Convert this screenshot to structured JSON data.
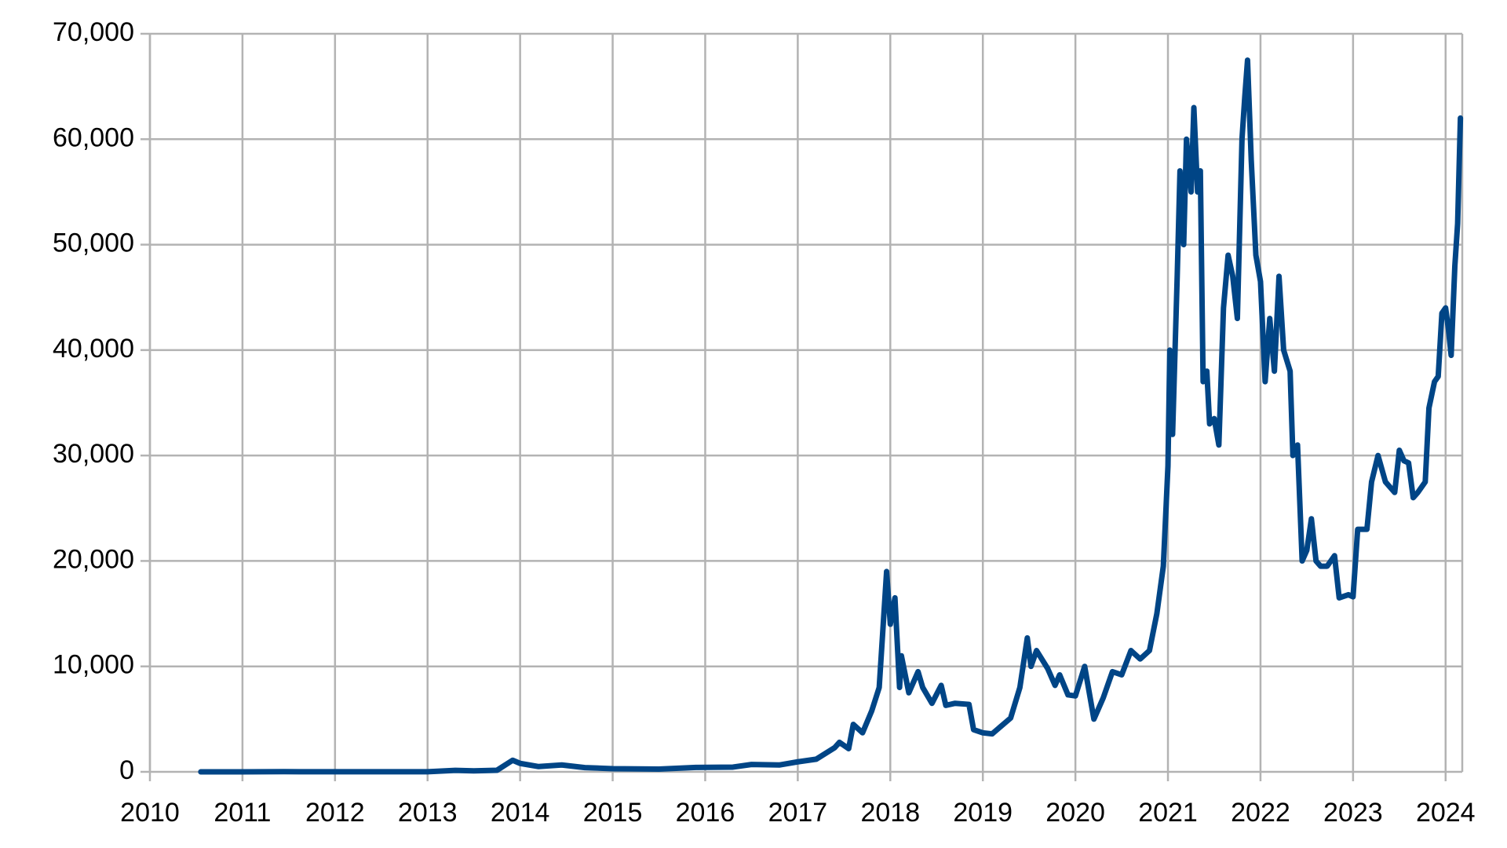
{
  "chart_data": {
    "type": "line",
    "x": [
      2010.55,
      2011.0,
      2011.45,
      2012.0,
      2012.5,
      2013.0,
      2013.3,
      2013.5,
      2013.75,
      2013.92,
      2014.0,
      2014.2,
      2014.45,
      2014.7,
      2015.0,
      2015.5,
      2015.9,
      2016.3,
      2016.5,
      2016.8,
      2017.0,
      2017.2,
      2017.4,
      2017.45,
      2017.55,
      2017.6,
      2017.7,
      2017.8,
      2017.88,
      2017.96,
      2018.0,
      2018.05,
      2018.1,
      2018.12,
      2018.2,
      2018.3,
      2018.35,
      2018.45,
      2018.55,
      2018.6,
      2018.7,
      2018.85,
      2018.9,
      2019.0,
      2019.1,
      2019.3,
      2019.4,
      2019.48,
      2019.52,
      2019.58,
      2019.7,
      2019.78,
      2019.83,
      2019.92,
      2020.0,
      2020.1,
      2020.2,
      2020.3,
      2020.4,
      2020.5,
      2020.6,
      2020.7,
      2020.8,
      2020.88,
      2020.95,
      2021.0,
      2021.02,
      2021.05,
      2021.1,
      2021.13,
      2021.17,
      2021.2,
      2021.25,
      2021.28,
      2021.32,
      2021.35,
      2021.38,
      2021.42,
      2021.45,
      2021.5,
      2021.55,
      2021.6,
      2021.65,
      2021.7,
      2021.75,
      2021.8,
      2021.83,
      2021.86,
      2021.9,
      2021.95,
      2022.0,
      2022.05,
      2022.1,
      2022.15,
      2022.2,
      2022.25,
      2022.32,
      2022.35,
      2022.4,
      2022.45,
      2022.5,
      2022.55,
      2022.6,
      2022.65,
      2022.72,
      2022.8,
      2022.85,
      2022.95,
      2023.0,
      2023.05,
      2023.15,
      2023.2,
      2023.27,
      2023.35,
      2023.45,
      2023.5,
      2023.55,
      2023.6,
      2023.65,
      2023.7,
      2023.78,
      2023.82,
      2023.88,
      2023.92,
      2023.96,
      2024.0,
      2024.03,
      2024.06,
      2024.1,
      2024.13,
      2024.16
    ],
    "series": [
      {
        "color": "#004586",
        "values": [
          0.07,
          0.3,
          15,
          5,
          7,
          13,
          140,
          90,
          150,
          1100,
          800,
          500,
          650,
          400,
          300,
          260,
          420,
          450,
          700,
          650,
          950,
          1200,
          2300,
          2800,
          2200,
          4500,
          3700,
          5800,
          8000,
          19000,
          14000,
          16500,
          8000,
          11000,
          7500,
          9500,
          8000,
          6500,
          8200,
          6300,
          6500,
          6400,
          4000,
          3700,
          3600,
          5100,
          8000,
          12700,
          10000,
          11500,
          9800,
          8200,
          9200,
          7300,
          7200,
          10000,
          5000,
          7000,
          9500,
          9200,
          11500,
          10700,
          11500,
          15000,
          19500,
          29000,
          40000,
          32000,
          47000,
          57000,
          50000,
          60000,
          55000,
          63000,
          55000,
          57000,
          37000,
          38000,
          33000,
          33500,
          31000,
          44000,
          49000,
          47000,
          43000,
          60000,
          64000,
          67500,
          58000,
          49000,
          46500,
          37000,
          43000,
          38000,
          47000,
          40000,
          38000,
          30000,
          31000,
          20000,
          21000,
          24000,
          20000,
          19500,
          19500,
          20500,
          16500,
          16800,
          16600,
          23000,
          23000,
          27500,
          30000,
          27500,
          26500,
          30500,
          29500,
          29300,
          26000,
          26500,
          27500,
          34500,
          37000,
          37500,
          43500,
          44000,
          42000,
          39500,
          48000,
          52000,
          62000
        ]
      }
    ],
    "xlim": [
      2010,
      2024.18
    ],
    "xticks": [
      2010,
      2011,
      2012,
      2013,
      2014,
      2015,
      2016,
      2017,
      2018,
      2019,
      2020,
      2021,
      2022,
      2023,
      2024
    ],
    "ylim": [
      0,
      70000
    ],
    "yticks": [
      0,
      {
        "value": 10000,
        "label": "10,000"
      },
      {
        "value": 20000,
        "label": "20,000"
      },
      {
        "value": 30000,
        "label": "30,000"
      },
      {
        "value": 40000,
        "label": "40,000"
      },
      {
        "value": 50000,
        "label": "50,000"
      },
      {
        "value": 60000,
        "label": "60,000"
      },
      {
        "value": 70000,
        "label": "70,000"
      }
    ],
    "grid": true
  }
}
